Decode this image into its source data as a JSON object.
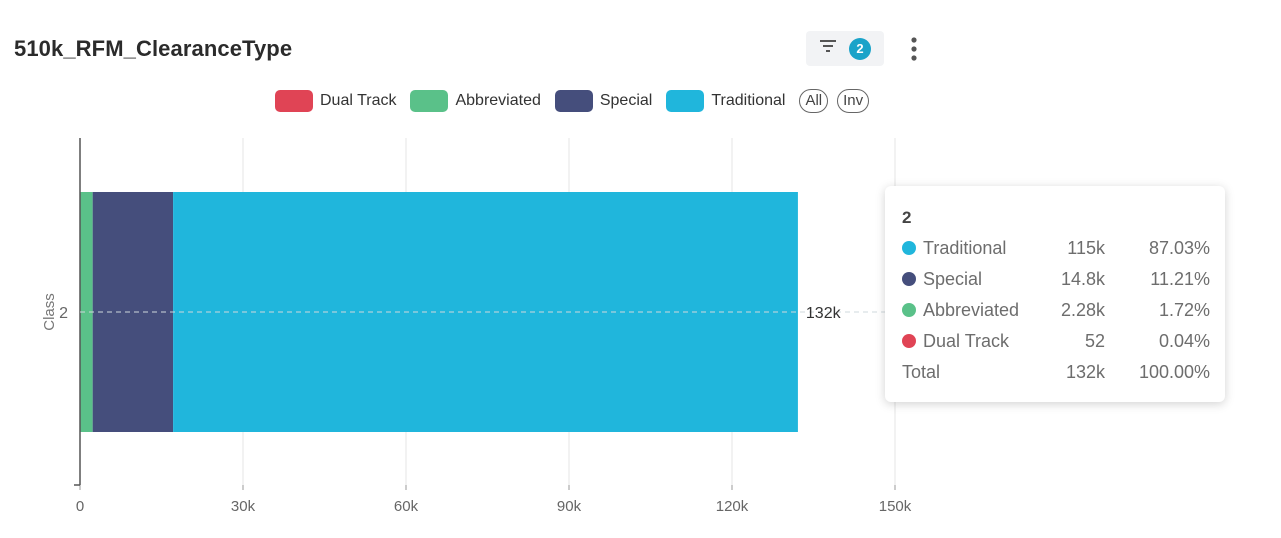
{
  "header": {
    "title": "510k_RFM_ClearanceType",
    "filter_count": "2"
  },
  "icons": {
    "filter": "filter-icon",
    "menu": "kebab-menu-icon"
  },
  "legend": {
    "items": [
      {
        "label": "Dual Track",
        "color": "#e04455"
      },
      {
        "label": "Abbreviated",
        "color": "#5ac189"
      },
      {
        "label": "Special",
        "color": "#454e7c"
      },
      {
        "label": "Traditional",
        "color": "#20b6dc"
      }
    ],
    "all_label": "All",
    "inv_label": "Inv"
  },
  "chart_data": {
    "type": "bar",
    "orientation": "horizontal",
    "stacked": true,
    "categories": [
      "2"
    ],
    "ylabel": "Class",
    "xlim": [
      0,
      150000
    ],
    "xticks": [
      0,
      30000,
      60000,
      90000,
      120000,
      150000
    ],
    "xtick_labels": [
      "0",
      "30k",
      "60k",
      "90k",
      "120k",
      "150k"
    ],
    "series": [
      {
        "name": "Dual Track",
        "values": [
          52
        ],
        "color": "#e04455"
      },
      {
        "name": "Abbreviated",
        "values": [
          2280
        ],
        "color": "#5ac189"
      },
      {
        "name": "Special",
        "values": [
          14800
        ],
        "color": "#454e7c"
      },
      {
        "name": "Traditional",
        "values": [
          115000
        ],
        "color": "#20b6dc"
      }
    ],
    "total_labels": [
      "132k"
    ],
    "grid": true
  },
  "tooltip": {
    "title": "2",
    "rows": [
      {
        "name": "Traditional",
        "value": "115k",
        "percent": "87.03%",
        "color": "#20b6dc"
      },
      {
        "name": "Special",
        "value": "14.8k",
        "percent": "11.21%",
        "color": "#454e7c"
      },
      {
        "name": "Abbreviated",
        "value": "2.28k",
        "percent": "1.72%",
        "color": "#5ac189"
      },
      {
        "name": "Dual Track",
        "value": "52",
        "percent": "0.04%",
        "color": "#e04455"
      }
    ],
    "total": {
      "name": "Total",
      "value": "132k",
      "percent": "100.00%"
    }
  }
}
